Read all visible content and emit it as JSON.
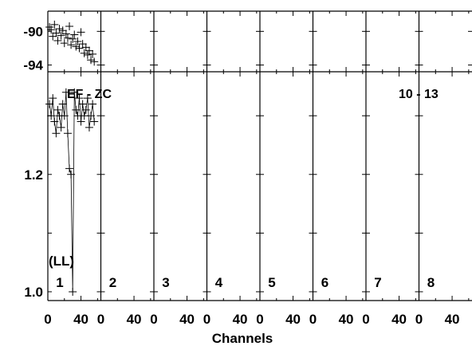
{
  "chart_data": {
    "type": "scatter",
    "baseline_label": "EF - ZC",
    "time_label": "10 - 13",
    "polarization_label": "(LL)",
    "xlabel": "Channels",
    "x_tick_labels": [
      "0",
      "40"
    ],
    "channel_range": [
      0,
      64
    ],
    "phase_axis": {
      "ylim": [
        -94.8,
        -87.6
      ],
      "ticks": [
        "-90",
        "-94"
      ],
      "tick_values": [
        -90,
        -94
      ]
    },
    "amp_axis": {
      "ylim": [
        0.985,
        1.375
      ],
      "ticks": [
        "1.2",
        "1.0"
      ],
      "tick_values": [
        1.2,
        1.0
      ]
    },
    "panels": [
      {
        "label": "1",
        "phase": {
          "x": [
            2,
            4,
            6,
            8,
            10,
            12,
            14,
            16,
            18,
            20,
            22,
            24,
            26,
            28,
            30,
            32,
            34,
            36,
            38,
            40,
            42,
            44,
            46,
            48,
            50,
            52,
            54,
            56
          ],
          "y": [
            -89.5,
            -89.8,
            -90.6,
            -89.2,
            -90.2,
            -91.1,
            -89.7,
            -90.5,
            -89.9,
            -91.4,
            -90.3,
            -90.8,
            -89.4,
            -91.6,
            -90.9,
            -90.4,
            -91.8,
            -91.2,
            -92.0,
            -90.1,
            -91.5,
            -92.6,
            -91.9,
            -92.8,
            -92.3,
            -93.4,
            -92.7,
            -93.6
          ]
        },
        "amp": {
          "x": [
            2,
            4,
            6,
            8,
            10,
            12,
            14,
            16,
            18,
            20,
            22,
            24,
            26,
            28,
            30,
            32,
            34,
            36,
            38,
            40,
            42,
            44,
            46,
            48,
            50,
            52,
            54,
            56
          ],
          "y": [
            1.32,
            1.3,
            1.33,
            1.29,
            1.27,
            1.31,
            1.3,
            1.28,
            1.32,
            1.3,
            1.34,
            1.27,
            1.21,
            1.2,
            1.0,
            1.34,
            1.31,
            1.3,
            1.33,
            1.29,
            1.32,
            1.3,
            1.31,
            1.33,
            1.28,
            1.3,
            1.32,
            1.29
          ]
        }
      },
      {
        "label": "2"
      },
      {
        "label": "3"
      },
      {
        "label": "4"
      },
      {
        "label": "5"
      },
      {
        "label": "6"
      },
      {
        "label": "7"
      },
      {
        "label": "8"
      }
    ]
  }
}
